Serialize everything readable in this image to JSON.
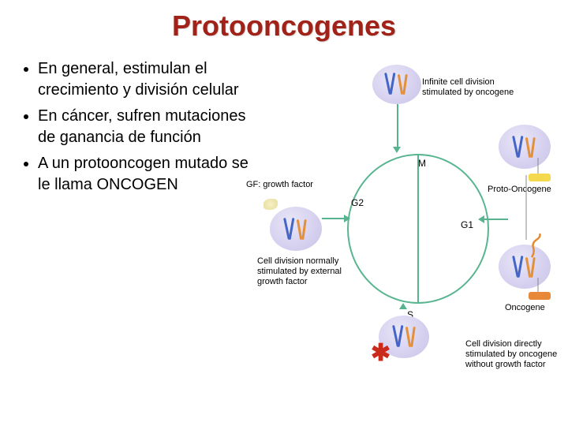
{
  "title": "Protooncogenes",
  "title_color": "#a02218",
  "bullets": [
    "En general, estimulan el crecimiento y división celular",
    "En cáncer, sufren mutaciones de ganancia de función",
    "A un protooncogen mutado se le llama ONCOGEN"
  ],
  "diagram": {
    "labels": {
      "infinite": "Infinite cell division\nstimulated by oncogene",
      "gf": "GF: growth factor",
      "m": "M",
      "g2": "G2",
      "g1": "G1",
      "s": "S",
      "proto": "Proto-Oncogene",
      "onco": "Oncogene",
      "normal": "Cell division normally\nstimulated by external\ngrowth factor",
      "direct": "Cell division directly\nstimulated by oncogene\nwithout growth factor"
    },
    "colors": {
      "ring": "#58b590",
      "cell_fill": "#d8d2f0",
      "chromo_blue": "#4565c6",
      "chromo_orange": "#e49038",
      "proto_box": "#f4d94f",
      "onco_box": "#e8893a",
      "gf": "#e7dd9a",
      "star": "#c92a1a",
      "squiggle": "#e48a2f"
    }
  }
}
